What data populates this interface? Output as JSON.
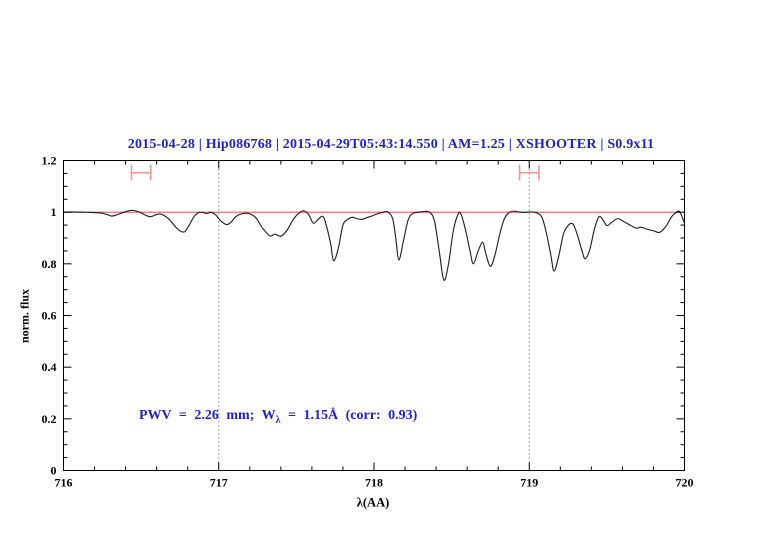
{
  "title": {
    "text": "2015-04-28 | Hip086768 | 2015-04-29T05:43:14.550 | AM=1.25 | XSHOOTER | S0.9x11"
  },
  "annotation": {
    "prefix": "PWV = 2.26 mm; W",
    "subscript": "λ",
    "suffix": " = 1.15Å (corr: 0.93)"
  },
  "axes": {
    "x": {
      "label": "λ(AA)",
      "min": 716,
      "max": 720,
      "major_step": 1,
      "minor_step": 0.2,
      "tick_labels": [
        "716",
        "717",
        "718",
        "719",
        "720"
      ]
    },
    "y": {
      "label": "norm. flux",
      "min": 0,
      "max": 1.2,
      "major_step": 0.2,
      "minor_step": 0.05,
      "tick_labels": [
        "0",
        "0.2",
        "0.4",
        "0.6",
        "0.8",
        "1",
        "1.2"
      ]
    }
  },
  "colors": {
    "text_blue": "#2121cc",
    "spectrum": "#1c1c1c",
    "continuum_red": "#e06060",
    "marker_pink": "#f09898",
    "guide_gray": "#555555",
    "frame": "#000000"
  },
  "chart_data": {
    "type": "line",
    "title": "2015-04-28 | Hip086768 | 2015-04-29T05:43:14.550 | AM=1.25 | XSHOOTER | S0.9x11",
    "xlabel": "λ(AA)",
    "ylabel": "norm. flux",
    "xlim": [
      716,
      720
    ],
    "ylim": [
      0,
      1.2
    ],
    "x_major_tick": 1,
    "x_minor_tick": 0.2,
    "y_major_tick": 0.2,
    "y_minor_tick": 0.05,
    "grid": false,
    "annotation": "PWV = 2.26 mm; W_λ = 1.15Å (corr: 0.93)",
    "continuum_y": 1.0,
    "dotted_guides_x": [
      717,
      719
    ],
    "window_markers": {
      "x_centers": [
        716.5,
        719.0
      ],
      "x_half_width": 0.062,
      "y": 1.153,
      "cap_half_height": 0.03
    },
    "series": [
      {
        "name": "normalized telluric spectrum",
        "points": [
          [
            716.0,
            1.0
          ],
          [
            716.06,
            1.001
          ],
          [
            716.12,
            1.0
          ],
          [
            716.18,
            0.999
          ],
          [
            716.24,
            0.997
          ],
          [
            716.28,
            0.991
          ],
          [
            716.31,
            0.985
          ],
          [
            716.34,
            0.989
          ],
          [
            716.38,
            0.998
          ],
          [
            716.42,
            1.005
          ],
          [
            716.45,
            1.007
          ],
          [
            716.49,
            1.0
          ],
          [
            716.53,
            0.988
          ],
          [
            716.56,
            0.982
          ],
          [
            716.59,
            0.989
          ],
          [
            716.62,
            0.993
          ],
          [
            716.65,
            0.986
          ],
          [
            716.68,
            0.973
          ],
          [
            716.72,
            0.944
          ],
          [
            716.75,
            0.928
          ],
          [
            716.78,
            0.924
          ],
          [
            716.81,
            0.95
          ],
          [
            716.84,
            0.982
          ],
          [
            716.87,
            0.998
          ],
          [
            716.9,
            0.999
          ],
          [
            716.92,
            0.995
          ],
          [
            716.95,
            0.999
          ],
          [
            716.98,
            0.99
          ],
          [
            717.01,
            0.968
          ],
          [
            717.05,
            0.952
          ],
          [
            717.08,
            0.962
          ],
          [
            717.11,
            0.983
          ],
          [
            717.14,
            0.992
          ],
          [
            717.17,
            0.996
          ],
          [
            717.2,
            0.994
          ],
          [
            717.24,
            0.978
          ],
          [
            717.28,
            0.94
          ],
          [
            717.33,
            0.908
          ],
          [
            717.36,
            0.915
          ],
          [
            717.4,
            0.907
          ],
          [
            717.44,
            0.93
          ],
          [
            717.48,
            0.972
          ],
          [
            717.52,
            0.998
          ],
          [
            717.55,
            1.005
          ],
          [
            717.58,
            0.99
          ],
          [
            717.61,
            0.957
          ],
          [
            717.64,
            0.972
          ],
          [
            717.67,
            0.984
          ],
          [
            717.69,
            0.955
          ],
          [
            717.72,
            0.88
          ],
          [
            717.74,
            0.812
          ],
          [
            717.77,
            0.86
          ],
          [
            717.8,
            0.95
          ],
          [
            717.83,
            0.972
          ],
          [
            717.86,
            0.98
          ],
          [
            717.89,
            0.975
          ],
          [
            717.92,
            0.972
          ],
          [
            717.95,
            0.978
          ],
          [
            717.98,
            0.984
          ],
          [
            718.02,
            0.993
          ],
          [
            718.06,
            1.0
          ],
          [
            718.09,
            1.001
          ],
          [
            718.12,
            0.975
          ],
          [
            718.14,
            0.9
          ],
          [
            718.16,
            0.815
          ],
          [
            718.19,
            0.89
          ],
          [
            718.22,
            0.97
          ],
          [
            718.25,
            0.995
          ],
          [
            718.29,
            1.0
          ],
          [
            718.33,
            1.003
          ],
          [
            718.36,
            0.999
          ],
          [
            718.39,
            0.965
          ],
          [
            718.42,
            0.85
          ],
          [
            718.45,
            0.737
          ],
          [
            718.48,
            0.8
          ],
          [
            718.51,
            0.925
          ],
          [
            718.54,
            0.99
          ],
          [
            718.56,
            0.993
          ],
          [
            718.59,
            0.93
          ],
          [
            718.62,
            0.845
          ],
          [
            718.64,
            0.8
          ],
          [
            718.67,
            0.848
          ],
          [
            718.7,
            0.884
          ],
          [
            718.72,
            0.84
          ],
          [
            718.75,
            0.79
          ],
          [
            718.78,
            0.836
          ],
          [
            718.81,
            0.915
          ],
          [
            718.84,
            0.975
          ],
          [
            718.87,
            0.998
          ],
          [
            718.9,
            1.004
          ],
          [
            718.93,
            1.001
          ],
          [
            718.97,
            0.999
          ],
          [
            719.0,
            1.001
          ],
          [
            719.04,
            0.999
          ],
          [
            719.08,
            0.982
          ],
          [
            719.11,
            0.92
          ],
          [
            719.14,
            0.83
          ],
          [
            719.16,
            0.772
          ],
          [
            719.19,
            0.83
          ],
          [
            719.22,
            0.915
          ],
          [
            719.25,
            0.948
          ],
          [
            719.28,
            0.955
          ],
          [
            719.31,
            0.912
          ],
          [
            719.34,
            0.85
          ],
          [
            719.36,
            0.82
          ],
          [
            719.39,
            0.855
          ],
          [
            719.42,
            0.935
          ],
          [
            719.45,
            0.983
          ],
          [
            719.48,
            0.965
          ],
          [
            719.5,
            0.948
          ],
          [
            719.53,
            0.96
          ],
          [
            719.57,
            0.975
          ],
          [
            719.61,
            0.963
          ],
          [
            719.65,
            0.95
          ],
          [
            719.69,
            0.938
          ],
          [
            719.72,
            0.942
          ],
          [
            719.76,
            0.934
          ],
          [
            719.8,
            0.928
          ],
          [
            719.84,
            0.922
          ],
          [
            719.88,
            0.945
          ],
          [
            719.92,
            0.985
          ],
          [
            719.95,
            1.0
          ],
          [
            719.97,
            1.001
          ],
          [
            720.0,
            0.958
          ]
        ]
      }
    ]
  }
}
